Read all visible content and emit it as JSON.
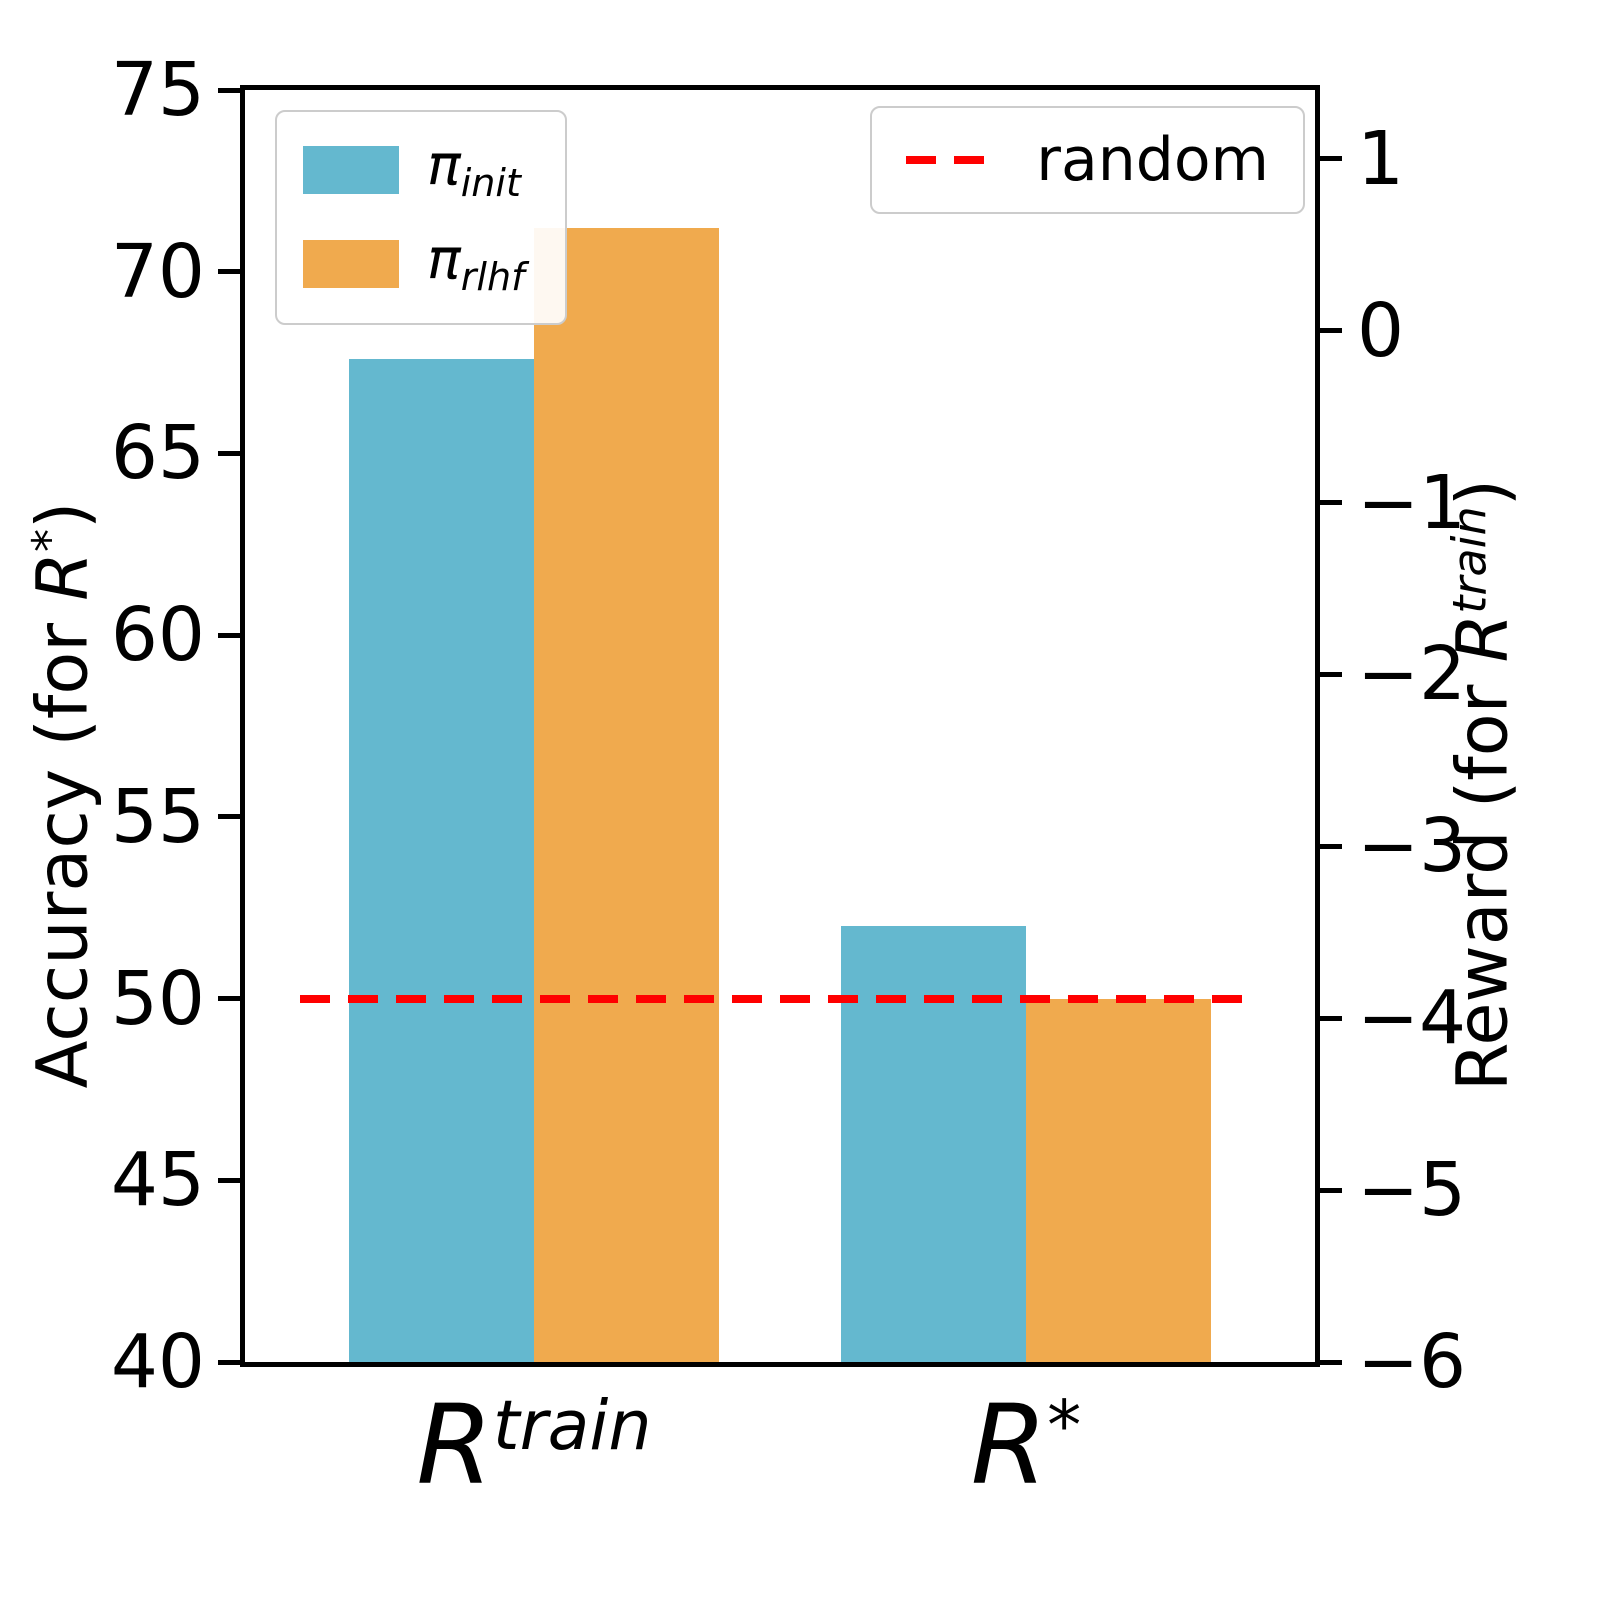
{
  "chart_data": {
    "type": "bar",
    "categories": [
      {
        "base": "R",
        "sup": "train",
        "text": "R^train"
      },
      {
        "base": "R",
        "sup": "*",
        "text": "R^*"
      }
    ],
    "series": [
      {
        "name": "pi_init",
        "label_base": "π",
        "label_sub": "init",
        "color": "#64b8cf",
        "values_left_axis": [
          67.6,
          52.0
        ]
      },
      {
        "name": "pi_rlhf",
        "label_base": "π",
        "label_sub": "rlhf",
        "color": "#f0aa4e",
        "values_left_axis": [
          71.2,
          50.0
        ]
      }
    ],
    "left_axis": {
      "label_prefix": "Accuracy (for ",
      "label_math_base": "R",
      "label_math_sup": "*",
      "label_suffix": ")",
      "min": 40,
      "max": 75,
      "ticks": [
        "40",
        "45",
        "50",
        "55",
        "60",
        "65",
        "70",
        "75"
      ],
      "tick_values": [
        40,
        45,
        50,
        55,
        60,
        65,
        70,
        75
      ]
    },
    "right_axis": {
      "label_prefix": "Reward (for ",
      "label_math_base": "R",
      "label_math_sup": "train",
      "label_suffix": ")",
      "min": -6,
      "max": 1.4,
      "ticks": [
        "−6",
        "−5",
        "−4",
        "−3",
        "−2",
        "−1",
        "0",
        "1"
      ],
      "tick_values": [
        -6,
        -5,
        -4,
        -3,
        -2,
        -1,
        0,
        1
      ]
    },
    "reference_line": {
      "label": "random",
      "value_left_axis": 50,
      "color": "#ff0000",
      "style": "dashed"
    },
    "rtrain_bars_right_axis_values_estimate": {
      "pi_init": -0.2,
      "pi_rlhf": 0.6
    },
    "grid": false,
    "legend_positions": [
      "upper left",
      "upper right"
    ]
  }
}
